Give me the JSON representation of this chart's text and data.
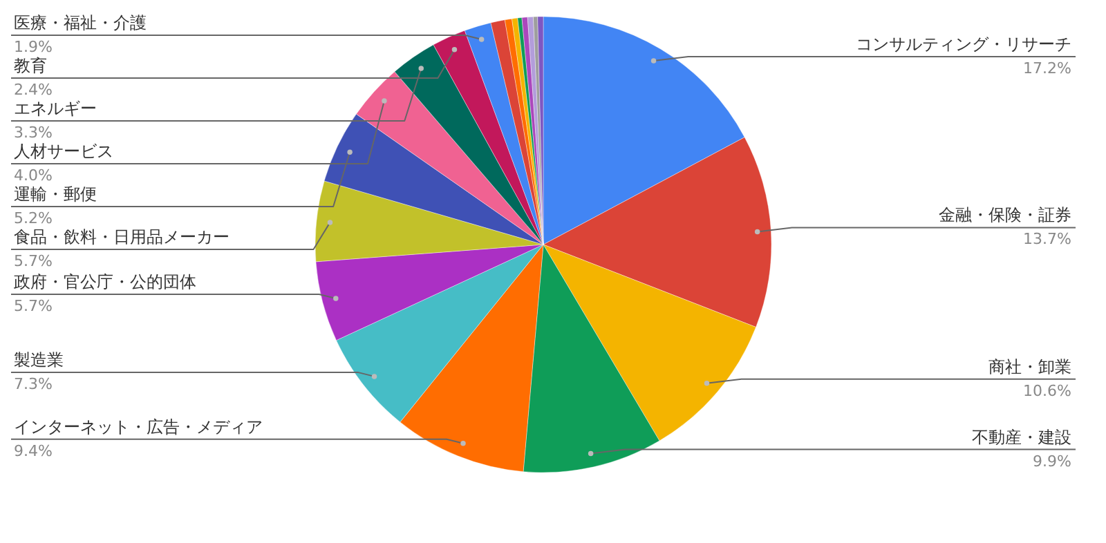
{
  "chart_data": {
    "type": "pie",
    "categories": [
      "コンサルティング・リサーチ",
      "金融・保険・証券",
      "商社・卸業",
      "不動産・建設",
      "インターネット・広告・メディア",
      "製造業",
      "政府・官公庁・公的団体",
      "食品・飲料・日用品メーカー",
      "運輸・郵便",
      "人材サービス",
      "エネルギー",
      "教育",
      "医療・福祉・介護",
      null,
      null,
      null,
      null,
      null,
      null,
      null,
      null
    ],
    "values": [
      17.2,
      13.7,
      10.6,
      9.9,
      9.4,
      7.3,
      5.7,
      5.7,
      5.2,
      4.0,
      3.3,
      2.4,
      1.9,
      1.0,
      0.5,
      0.4,
      0.3,
      0.4,
      0.4,
      0.3,
      0.4
    ],
    "value_labels": [
      "17.2%",
      "13.7%",
      "10.6%",
      "9.9%",
      "9.4%",
      "7.3%",
      "5.7%",
      "5.7%",
      "5.2%",
      "4.0%",
      "3.3%",
      "2.4%",
      "1.9%",
      null,
      null,
      null,
      null,
      null,
      null,
      null,
      null
    ],
    "colors": [
      "#4285f4",
      "#db4437",
      "#f4b400",
      "#0f9d58",
      "#ff6d01",
      "#46bdc6",
      "#ab30c4",
      "#c2c12a",
      "#3f51b5",
      "#f06292",
      "#00695c",
      "#c2185b",
      "#4285f4",
      "#db4437",
      "#ff6d01",
      "#f4b400",
      "#0f9d58",
      "#ab47bc",
      "#b39ddb",
      "#9e9e9e",
      "#7e57c2"
    ]
  }
}
